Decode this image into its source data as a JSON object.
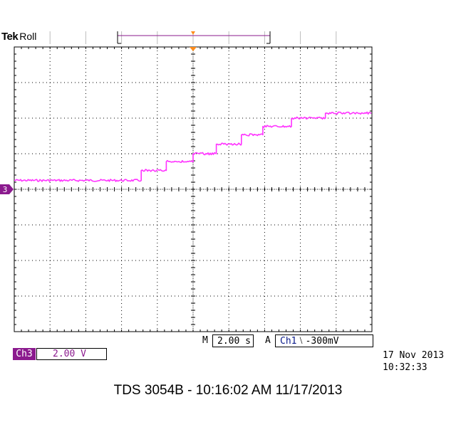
{
  "header": {
    "brand": "Tek",
    "mode": "Roll"
  },
  "chart_data": {
    "type": "line",
    "x_divisions": 10,
    "y_divisions": 8,
    "x_label": "",
    "y_label": "",
    "grid": true,
    "trace_color": "#ff33ff",
    "channel_marker": "3",
    "channel_marker_color": "#8b1a8e",
    "trigger_marker_color": "#ff8c1a",
    "series": [
      {
        "x": [
          0,
          3.55,
          3.55,
          4.25,
          4.25,
          5.0,
          5.0,
          5.65,
          5.65,
          6.35,
          6.35,
          6.95,
          6.95,
          7.75,
          7.75,
          8.7,
          8.7,
          10.0
        ],
        "y": [
          0.25,
          0.25,
          0.53,
          0.53,
          0.78,
          0.78,
          1.0,
          1.0,
          1.27,
          1.27,
          1.53,
          1.53,
          1.77,
          1.77,
          2.0,
          2.0,
          2.14,
          2.14
        ]
      }
    ]
  },
  "settings": {
    "horizontal_prefix": "M",
    "horizontal_scale": "2.00 s",
    "trigger_prefix": "A",
    "trigger_source": "Ch1",
    "trigger_slope": "⧵",
    "trigger_level": "-300mV",
    "channel_label": "Ch3",
    "channel_scale": "2.00 V"
  },
  "datetime": {
    "date": "17 Nov 2013",
    "time": "10:32:33"
  },
  "footer": "TDS 3054B - 10:16:02 AM    11/17/2013"
}
